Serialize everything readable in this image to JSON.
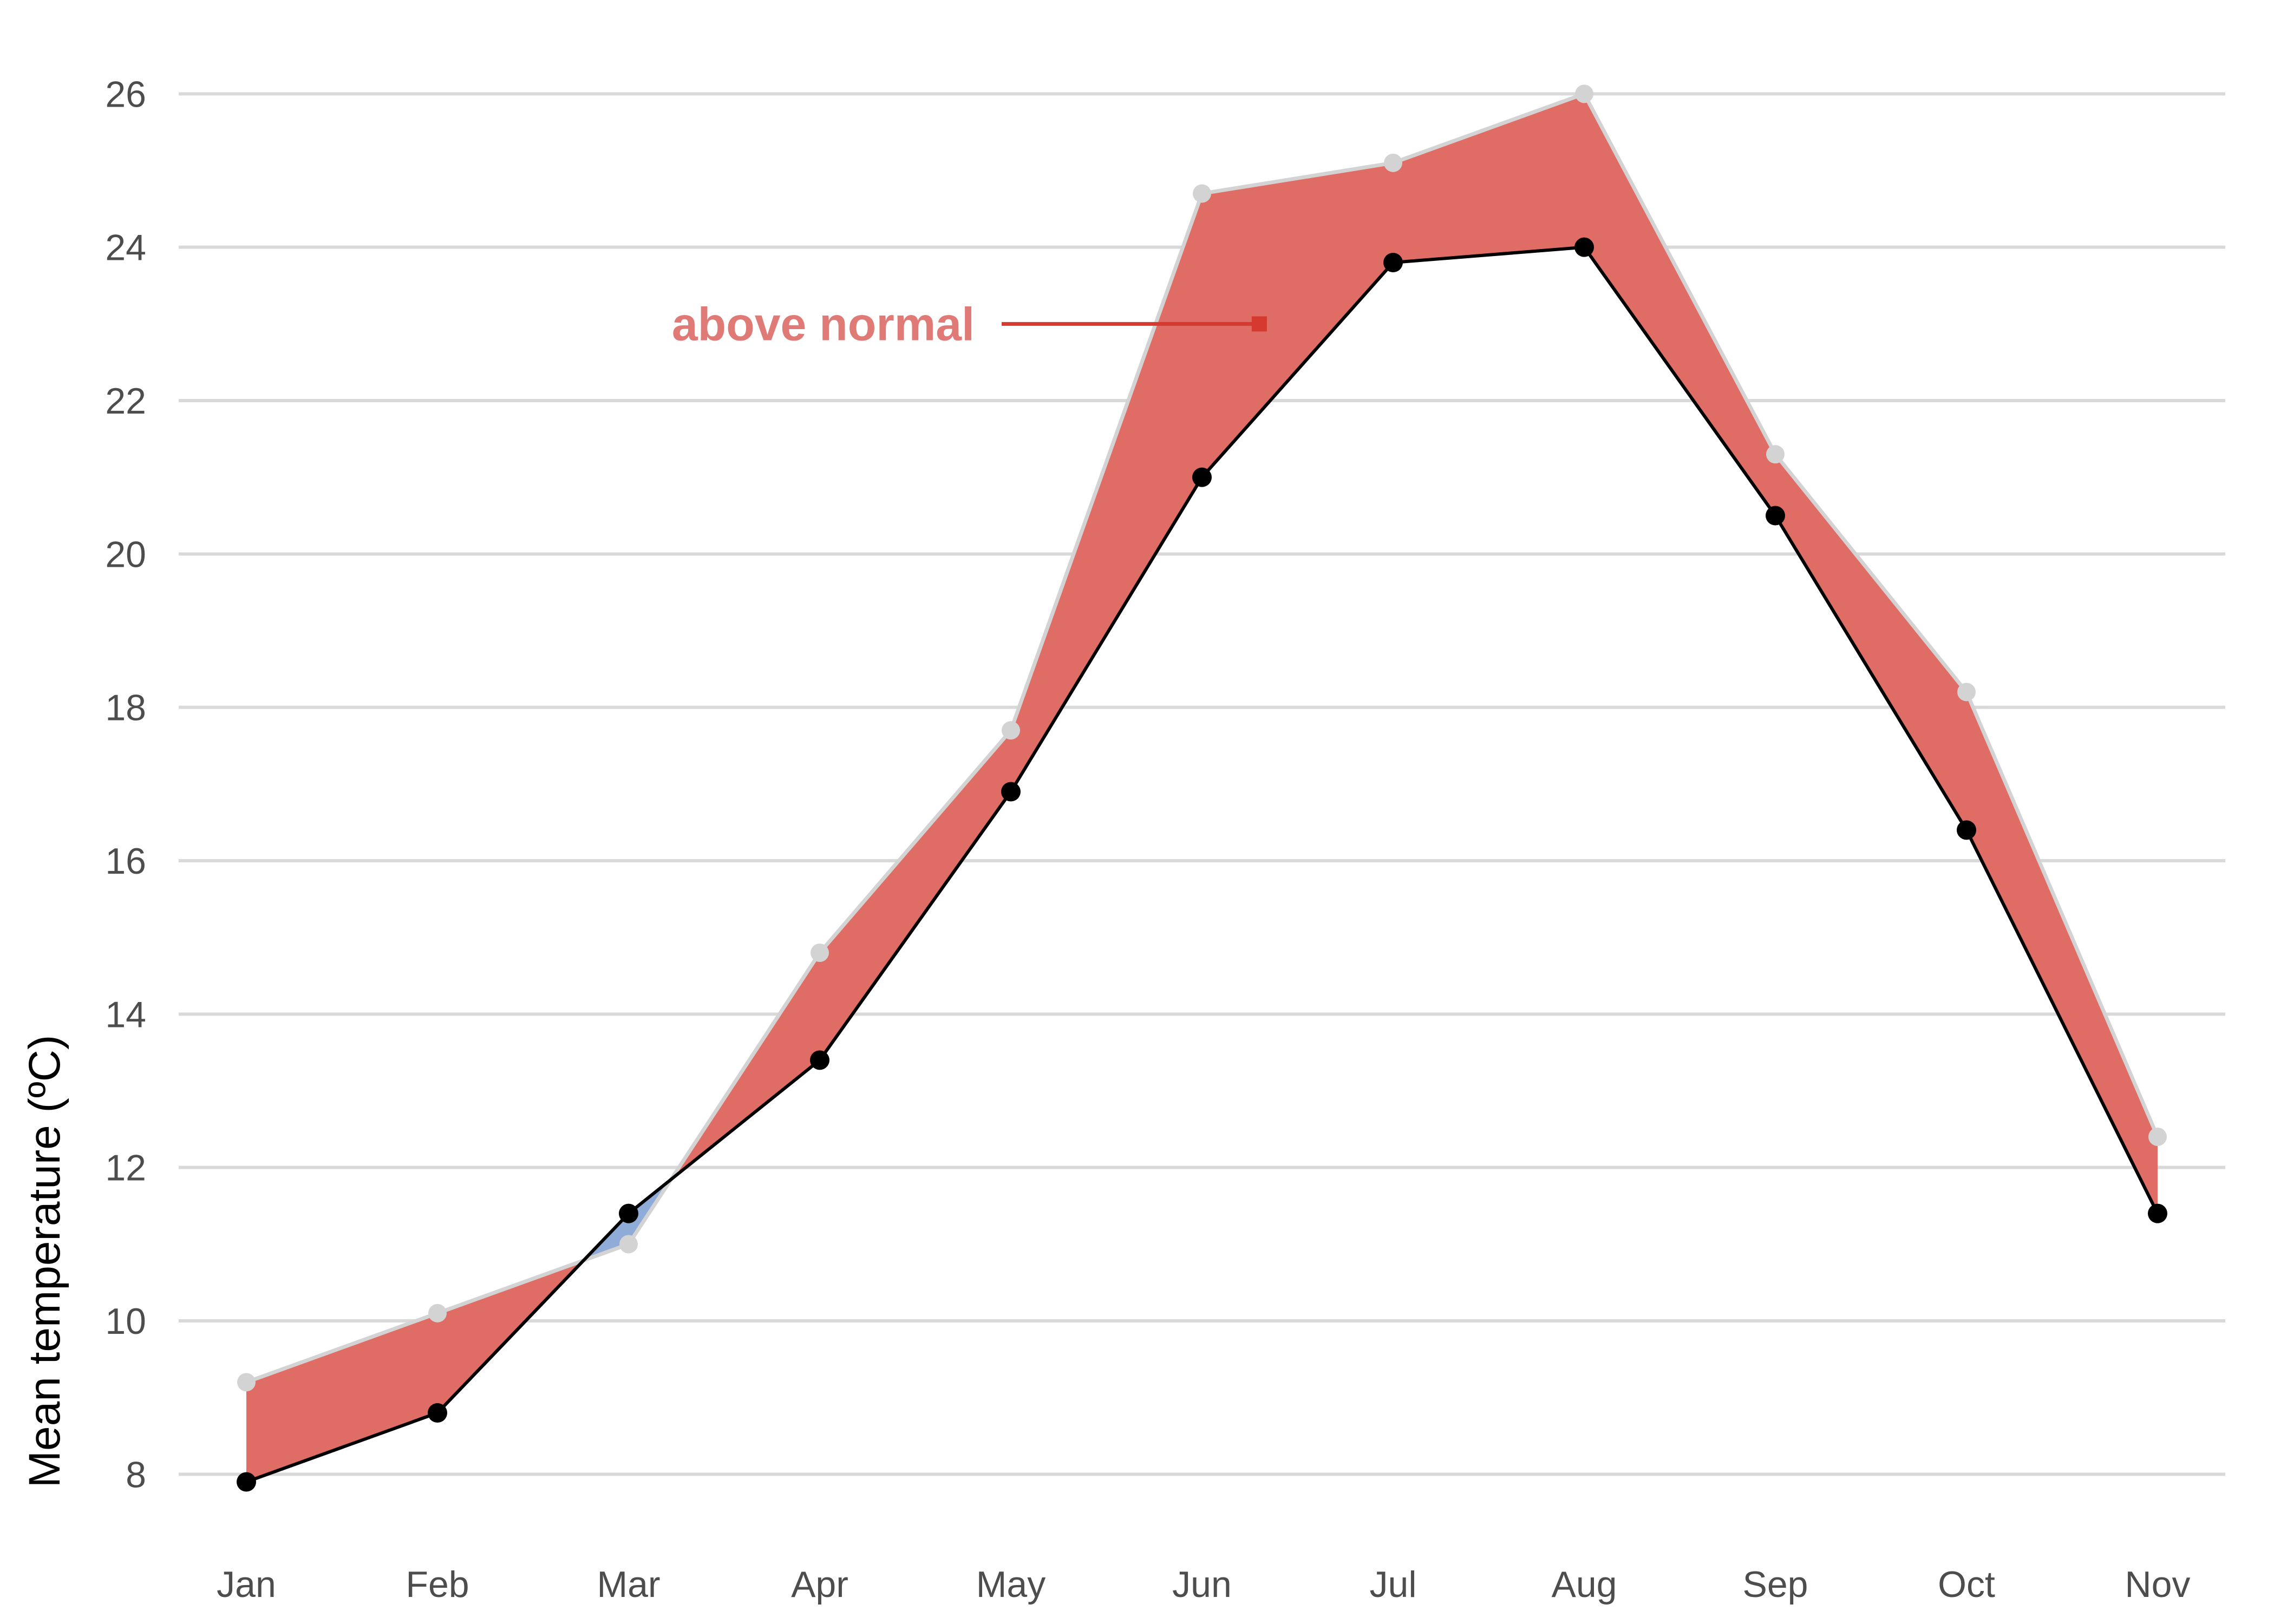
{
  "chart_data": {
    "type": "area",
    "categories": [
      "Jan",
      "Feb",
      "Mar",
      "Apr",
      "May",
      "Jun",
      "Jul",
      "Aug",
      "Sep",
      "Oct",
      "Nov"
    ],
    "series": [
      {
        "values": [
          9.2,
          10.1,
          11.0,
          14.8,
          17.7,
          24.7,
          25.1,
          26.0,
          21.3,
          18.2,
          12.4
        ]
      },
      {
        "values": [
          7.9,
          8.8,
          11.4,
          13.4,
          16.9,
          21.0,
          23.8,
          24.0,
          20.5,
          16.4,
          11.4
        ]
      }
    ],
    "ylabel": "Mean temperature (ºC)",
    "ylim": [
      7,
      26.8
    ],
    "yticks": [
      8,
      10,
      12,
      14,
      16,
      18,
      20,
      22,
      24,
      26
    ],
    "grid": "horizontal",
    "annotation": {
      "text": "above normal",
      "x": "Jun",
      "x_offset": 0.3,
      "y": 23.0
    },
    "colors": {
      "above_fill": "#e06c66",
      "below_fill": "#8fabd8",
      "upper_line": "#d3d3d3",
      "lower_line": "#000000",
      "annotation_text": "#e07a76",
      "annotation_line": "#d63a2f",
      "grid": "#d9d9d9"
    }
  }
}
